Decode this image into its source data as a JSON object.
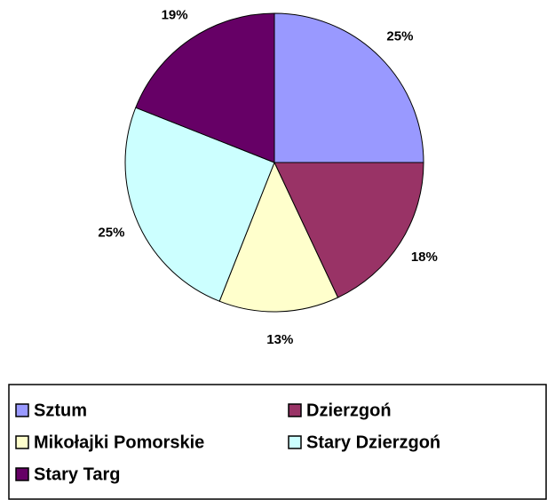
{
  "chart_data": {
    "type": "pie",
    "categories": [
      "Sztum",
      "Dzierzgoń",
      "Mikołajki Pomorskie",
      "Stary Dzierzgoń",
      "Stary Targ"
    ],
    "values": [
      25,
      18,
      13,
      25,
      19
    ],
    "value_labels": [
      "25%",
      "18%",
      "13%",
      "25%",
      "19%"
    ],
    "colors": [
      "#9999ff",
      "#993366",
      "#ffffcc",
      "#ccffff",
      "#660066"
    ],
    "legend": "bottom"
  }
}
